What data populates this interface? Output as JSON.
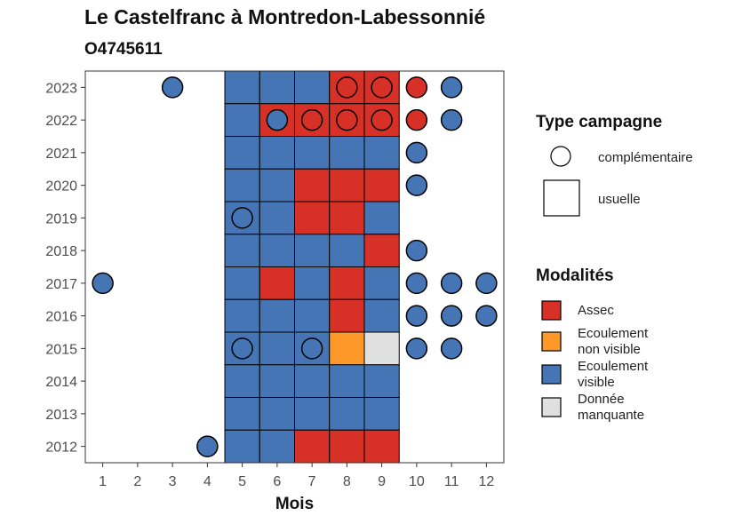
{
  "title": "Le Castelfranc à Montredon-Labessonnié",
  "subtitle": "O4745611",
  "colors": {
    "Assec": "#D73027",
    "Ecoulement non visible": "#FE9929",
    "Ecoulement visible": "#4575B4",
    "Donnée manquante": "#E0E0E0"
  },
  "chart_data": {
    "type": "heatmap",
    "xlabel": "Mois",
    "ylabel": "",
    "x_ticks": [
      "1",
      "2",
      "3",
      "4",
      "5",
      "6",
      "7",
      "8",
      "9",
      "10",
      "11",
      "12"
    ],
    "y_ticks": [
      "2023",
      "2022",
      "2021",
      "2020",
      "2019",
      "2018",
      "2017",
      "2016",
      "2015",
      "2014",
      "2013",
      "2012"
    ],
    "xlim": [
      0.5,
      12.5
    ],
    "series": [
      {
        "campagne": "usuelle",
        "year": "2023",
        "months": [
          5,
          6,
          7,
          8,
          9
        ],
        "values": [
          "Ecoulement visible",
          "Ecoulement visible",
          "Ecoulement visible",
          "Assec",
          "Assec"
        ]
      },
      {
        "campagne": "usuelle",
        "year": "2022",
        "months": [
          5,
          6,
          7,
          8,
          9
        ],
        "values": [
          "Ecoulement visible",
          "Assec",
          "Assec",
          "Assec",
          "Assec"
        ]
      },
      {
        "campagne": "usuelle",
        "year": "2021",
        "months": [
          5,
          6,
          7,
          8,
          9
        ],
        "values": [
          "Ecoulement visible",
          "Ecoulement visible",
          "Ecoulement visible",
          "Ecoulement visible",
          "Ecoulement visible"
        ]
      },
      {
        "campagne": "usuelle",
        "year": "2020",
        "months": [
          5,
          6,
          7,
          8,
          9
        ],
        "values": [
          "Ecoulement visible",
          "Ecoulement visible",
          "Assec",
          "Assec",
          "Assec"
        ]
      },
      {
        "campagne": "usuelle",
        "year": "2019",
        "months": [
          5,
          6,
          7,
          8,
          9
        ],
        "values": [
          "Ecoulement visible",
          "Ecoulement visible",
          "Assec",
          "Assec",
          "Ecoulement visible"
        ]
      },
      {
        "campagne": "usuelle",
        "year": "2018",
        "months": [
          5,
          6,
          7,
          8,
          9
        ],
        "values": [
          "Ecoulement visible",
          "Ecoulement visible",
          "Ecoulement visible",
          "Ecoulement visible",
          "Assec"
        ]
      },
      {
        "campagne": "usuelle",
        "year": "2017",
        "months": [
          5,
          6,
          7,
          8,
          9
        ],
        "values": [
          "Ecoulement visible",
          "Assec",
          "Ecoulement visible",
          "Assec",
          "Ecoulement visible"
        ]
      },
      {
        "campagne": "usuelle",
        "year": "2016",
        "months": [
          5,
          6,
          7,
          8,
          9
        ],
        "values": [
          "Ecoulement visible",
          "Ecoulement visible",
          "Ecoulement visible",
          "Assec",
          "Ecoulement visible"
        ]
      },
      {
        "campagne": "usuelle",
        "year": "2015",
        "months": [
          5,
          6,
          7,
          8,
          9
        ],
        "values": [
          "Ecoulement visible",
          "Ecoulement visible",
          "Ecoulement visible",
          "Ecoulement non visible",
          "Donnée manquante"
        ]
      },
      {
        "campagne": "usuelle",
        "year": "2014",
        "months": [
          5,
          6,
          7,
          8,
          9
        ],
        "values": [
          "Ecoulement visible",
          "Ecoulement visible",
          "Ecoulement visible",
          "Ecoulement visible",
          "Ecoulement visible"
        ]
      },
      {
        "campagne": "usuelle",
        "year": "2013",
        "months": [
          5,
          6,
          7,
          8,
          9
        ],
        "values": [
          "Ecoulement visible",
          "Ecoulement visible",
          "Ecoulement visible",
          "Ecoulement visible",
          "Ecoulement visible"
        ]
      },
      {
        "campagne": "usuelle",
        "year": "2012",
        "months": [
          5,
          6,
          7,
          8,
          9
        ],
        "values": [
          "Ecoulement visible",
          "Ecoulement visible",
          "Assec",
          "Assec",
          "Assec"
        ]
      }
    ],
    "complementaire": [
      {
        "year": "2023",
        "month": 3,
        "value": "Ecoulement visible"
      },
      {
        "year": "2023",
        "month": 8,
        "value": "Assec"
      },
      {
        "year": "2023",
        "month": 9,
        "value": "Assec"
      },
      {
        "year": "2023",
        "month": 10,
        "value": "Assec"
      },
      {
        "year": "2023",
        "month": 11,
        "value": "Ecoulement visible"
      },
      {
        "year": "2022",
        "month": 6,
        "value": "Ecoulement visible"
      },
      {
        "year": "2022",
        "month": 7,
        "value": "Assec"
      },
      {
        "year": "2022",
        "month": 8,
        "value": "Assec"
      },
      {
        "year": "2022",
        "month": 9,
        "value": "Assec"
      },
      {
        "year": "2022",
        "month": 10,
        "value": "Assec"
      },
      {
        "year": "2022",
        "month": 11,
        "value": "Ecoulement visible"
      },
      {
        "year": "2021",
        "month": 10,
        "value": "Ecoulement visible"
      },
      {
        "year": "2020",
        "month": 10,
        "value": "Ecoulement visible"
      },
      {
        "year": "2019",
        "month": 5,
        "value": "Ecoulement visible"
      },
      {
        "year": "2018",
        "month": 10,
        "value": "Ecoulement visible"
      },
      {
        "year": "2017",
        "month": 1,
        "value": "Ecoulement visible"
      },
      {
        "year": "2017",
        "month": 10,
        "value": "Ecoulement visible"
      },
      {
        "year": "2017",
        "month": 11,
        "value": "Ecoulement visible"
      },
      {
        "year": "2017",
        "month": 12,
        "value": "Ecoulement visible"
      },
      {
        "year": "2016",
        "month": 10,
        "value": "Ecoulement visible"
      },
      {
        "year": "2016",
        "month": 11,
        "value": "Ecoulement visible"
      },
      {
        "year": "2016",
        "month": 12,
        "value": "Ecoulement visible"
      },
      {
        "year": "2015",
        "month": 5,
        "value": "Ecoulement visible"
      },
      {
        "year": "2015",
        "month": 7,
        "value": "Ecoulement visible"
      },
      {
        "year": "2015",
        "month": 10,
        "value": "Ecoulement visible"
      },
      {
        "year": "2015",
        "month": 11,
        "value": "Ecoulement visible"
      },
      {
        "year": "2012",
        "month": 4,
        "value": "Ecoulement visible"
      }
    ],
    "legend": {
      "shape_title": "Type campagne",
      "shape_items": [
        "complémentaire",
        "usuelle"
      ],
      "fill_title": "Modalités",
      "fill_items": [
        {
          "key": "Assec",
          "lines": [
            "Assec"
          ]
        },
        {
          "key": "Ecoulement non visible",
          "lines": [
            "Ecoulement",
            "non visible"
          ]
        },
        {
          "key": "Ecoulement visible",
          "lines": [
            "Ecoulement",
            "visible"
          ]
        },
        {
          "key": "Donnée manquante",
          "lines": [
            "Donnée",
            "manquante"
          ]
        }
      ]
    }
  }
}
